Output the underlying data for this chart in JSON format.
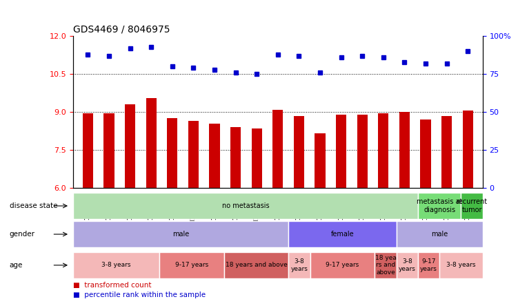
{
  "title": "GDS4469 / 8046975",
  "samples": [
    "GSM1025530",
    "GSM1025531",
    "GSM1025532",
    "GSM1025546",
    "GSM1025535",
    "GSM1025544",
    "GSM1025545",
    "GSM1025537",
    "GSM1025542",
    "GSM1025543",
    "GSM1025540",
    "GSM1025528",
    "GSM1025534",
    "GSM1025541",
    "GSM1025536",
    "GSM1025538",
    "GSM1025533",
    "GSM1025529",
    "GSM1025539"
  ],
  "transformed_count": [
    8.95,
    8.95,
    9.3,
    9.55,
    8.75,
    8.65,
    8.55,
    8.4,
    8.35,
    9.1,
    8.85,
    8.15,
    8.9,
    8.9,
    8.95,
    9.0,
    8.7,
    8.85,
    9.05
  ],
  "percentile_rank": [
    88,
    87,
    92,
    93,
    80,
    79,
    78,
    76,
    75,
    88,
    87,
    76,
    86,
    87,
    86,
    83,
    82,
    82,
    90
  ],
  "bar_color": "#cc0000",
  "dot_color": "#0000cc",
  "ylim_left": [
    6,
    12
  ],
  "ylim_right": [
    0,
    100
  ],
  "yticks_left": [
    6,
    7.5,
    9,
    10.5,
    12
  ],
  "yticks_right": [
    0,
    25,
    50,
    75,
    100
  ],
  "grid_values": [
    7.5,
    9.0,
    10.5
  ],
  "disease_state_groups": [
    {
      "label": "no metastasis",
      "start": 0,
      "end": 16,
      "color": "#b2dfb0"
    },
    {
      "label": "metastasis at\ndiagnosis",
      "start": 16,
      "end": 18,
      "color": "#77dd77"
    },
    {
      "label": "recurrent\ntumor",
      "start": 18,
      "end": 19,
      "color": "#44bb44"
    }
  ],
  "gender_groups": [
    {
      "label": "male",
      "start": 0,
      "end": 10,
      "color": "#b0a8e0"
    },
    {
      "label": "female",
      "start": 10,
      "end": 15,
      "color": "#7b68ee"
    },
    {
      "label": "male",
      "start": 15,
      "end": 19,
      "color": "#b0a8e0"
    }
  ],
  "age_groups": [
    {
      "label": "3-8 years",
      "start": 0,
      "end": 4,
      "color": "#f4b8b8"
    },
    {
      "label": "9-17 years",
      "start": 4,
      "end": 7,
      "color": "#e88080"
    },
    {
      "label": "18 years and above",
      "start": 7,
      "end": 10,
      "color": "#d06060"
    },
    {
      "label": "3-8\nyears",
      "start": 10,
      "end": 11,
      "color": "#f4b8b8"
    },
    {
      "label": "9-17 years",
      "start": 11,
      "end": 14,
      "color": "#e88080"
    },
    {
      "label": "18 yea\nrs and\nabove",
      "start": 14,
      "end": 15,
      "color": "#d06060"
    },
    {
      "label": "3-8\nyears",
      "start": 15,
      "end": 16,
      "color": "#f4b8b8"
    },
    {
      "label": "9-17\nyears",
      "start": 16,
      "end": 17,
      "color": "#e88080"
    },
    {
      "label": "3-8 years",
      "start": 17,
      "end": 19,
      "color": "#f4b8b8"
    }
  ],
  "row_labels": [
    "disease state",
    "gender",
    "age"
  ],
  "legend_items": [
    {
      "label": "transformed count",
      "color": "#cc0000"
    },
    {
      "label": "percentile rank within the sample",
      "color": "#0000cc"
    }
  ]
}
